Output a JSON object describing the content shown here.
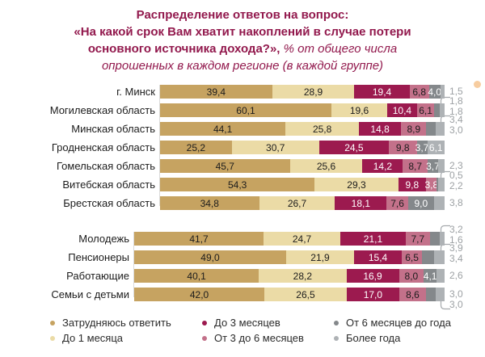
{
  "title": {
    "lines": [
      {
        "bold": "Распределение ответов на вопрос:",
        "italic": ""
      },
      {
        "bold": "«На какой срок Вам хватит накоплений в случае потери",
        "italic": ""
      },
      {
        "bold": "основного источника дохода?», ",
        "italic": "% от общего числа"
      },
      {
        "bold": "",
        "italic": "опрошенных в каждом регионе (в каждой группе)"
      }
    ],
    "color": "#92194D"
  },
  "categories": [
    {
      "label": "Затрудняюсь ответить",
      "color": "#C6A361",
      "text_color": "#1c1c1c"
    },
    {
      "label": "До 1 месяца",
      "color": "#EBDBA6",
      "text_color": "#1c1c1c"
    },
    {
      "label": "До 3 месяцев",
      "color": "#9C1A4F",
      "text_color": "#ffffff"
    },
    {
      "label": "От 3 до 6 месяцев",
      "color": "#C3718A",
      "text_color": "#1c1c1c"
    },
    {
      "label": "От 6 месяцев до года",
      "color": "#84888B",
      "text_color": "#ffffff"
    },
    {
      "label": "Более года",
      "color": "#AEB2B5",
      "text_color": "#ffffff"
    }
  ],
  "legend_columns": [
    [
      0,
      1
    ],
    [
      2,
      3
    ],
    [
      4,
      5
    ]
  ],
  "chart_data": [
    {
      "type": "bar",
      "orientation": "horizontal_stacked",
      "group": "regions",
      "xlim": [
        0,
        100
      ],
      "categories": [
        "г. Минск",
        "Могилевская область",
        "Минская область",
        "Гродненская область",
        "Гомельская область",
        "Витебская область",
        "Брестская область"
      ],
      "series": [
        {
          "name": "Затрудняюсь ответить",
          "values": [
            39.4,
            60.1,
            44.1,
            25.2,
            45.7,
            54.3,
            34.8
          ]
        },
        {
          "name": "До 1 месяца",
          "values": [
            28.9,
            19.6,
            25.8,
            30.7,
            25.6,
            29.3,
            26.7
          ]
        },
        {
          "name": "До 3 месяцев",
          "values": [
            19.4,
            10.4,
            14.8,
            24.5,
            14.2,
            9.8,
            18.1
          ]
        },
        {
          "name": "От 3 до 6 месяцев",
          "values": [
            6.8,
            6.1,
            8.9,
            9.8,
            8.7,
            3.8,
            7.6
          ]
        },
        {
          "name": "От 6 месяцев до года",
          "values": [
            4.0,
            1.8,
            3.4,
            3.7,
            3.7,
            0.5,
            9.0
          ]
        },
        {
          "name": "Более года",
          "values": [
            1.5,
            1.8,
            3.0,
            6.1,
            2.3,
            2.2,
            3.8
          ]
        }
      ],
      "outside_counts": [
        1,
        2,
        2,
        0,
        1,
        2,
        1
      ],
      "brackets": [
        null,
        "top",
        "top",
        null,
        null,
        "top",
        null
      ]
    },
    {
      "type": "bar",
      "orientation": "horizontal_stacked",
      "group": "social_groups",
      "xlim": [
        0,
        100
      ],
      "categories": [
        "Молодежь",
        "Пенсионеры",
        "Работающие",
        "Семьи с детьми"
      ],
      "series": [
        {
          "name": "Затрудняюсь ответить",
          "values": [
            41.7,
            49.0,
            40.1,
            42.0
          ]
        },
        {
          "name": "До 1 месяца",
          "values": [
            24.7,
            21.9,
            28.2,
            26.5
          ]
        },
        {
          "name": "До 3 месяцев",
          "values": [
            21.1,
            15.4,
            16.9,
            17.0
          ]
        },
        {
          "name": "От 3 до 6 месяцев",
          "values": [
            7.7,
            6.5,
            8.0,
            8.6
          ]
        },
        {
          "name": "От 6 месяцев до года",
          "values": [
            3.2,
            3.9,
            4.1,
            3.0
          ]
        },
        {
          "name": "Более года",
          "values": [
            1.6,
            3.4,
            2.6,
            3.0
          ]
        }
      ],
      "outside_counts": [
        2,
        2,
        1,
        2
      ],
      "brackets": [
        "top",
        "top",
        null,
        "bottom"
      ]
    }
  ]
}
